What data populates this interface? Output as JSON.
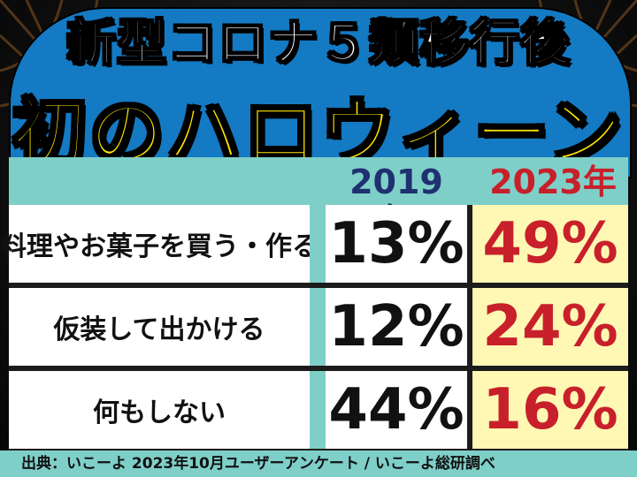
{
  "title": {
    "line1": "新型コロナ５類移行後",
    "line2": "初のハロウィーン"
  },
  "table": {
    "headers": [
      "2019年",
      "2023年"
    ],
    "rows": [
      {
        "label": "料理やお菓子を買う・作る",
        "y2019": "13%",
        "y2023": "49%"
      },
      {
        "label": "仮装して出かける",
        "y2019": "12%",
        "y2023": "24%"
      },
      {
        "label": "何もしない",
        "y2019": "44%",
        "y2023": "16%"
      }
    ]
  },
  "source": "出典：いこーよ 2023年10月ユーザーアンケート / いこーよ総研調べ",
  "colors": {
    "title_panel": "#147ac3",
    "title_line1": "#ffffff",
    "title_line2": "#ffe600",
    "header_band": "#7fcfc9",
    "header_2019": "#1f3170",
    "header_2023": "#c8202a",
    "value_2023": "#c8202a",
    "cell_2023_bg": "#fff7b4"
  }
}
